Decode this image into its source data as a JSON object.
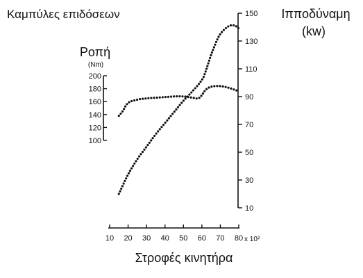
{
  "chart_data": {
    "type": "line",
    "title": "Καμπύλες επιδόσεων",
    "xlabel": "Στροφές κινητήρα",
    "x_multiplier_label": "x 10²",
    "x_ticks": [
      10,
      20,
      30,
      40,
      50,
      60,
      70,
      80
    ],
    "xlim": [
      10,
      80
    ],
    "left_axis": {
      "title": "Ροπή",
      "unit": "(Nm)",
      "ticks": [
        100,
        120,
        140,
        160,
        180,
        200
      ],
      "ylim": [
        100,
        200
      ]
    },
    "right_axis": {
      "title_line1": "Ιπποδύναμη",
      "title_line2": "(kw)",
      "ticks": [
        10,
        30,
        50,
        70,
        90,
        110,
        130,
        150
      ],
      "ylim": [
        10,
        150
      ]
    },
    "grid": false,
    "series": [
      {
        "axis": "left",
        "line_style": "dotted",
        "x": [
          15,
          17,
          20,
          25,
          30,
          35,
          40,
          45,
          50,
          55,
          58,
          60,
          62,
          65,
          70,
          75,
          80
        ],
        "y": [
          138,
          145,
          158,
          163,
          165,
          166,
          167,
          168,
          168,
          166,
          165,
          170,
          178,
          183,
          184,
          181,
          176
        ]
      },
      {
        "axis": "right",
        "line_style": "dotted",
        "x": [
          15,
          20,
          25,
          30,
          35,
          40,
          45,
          50,
          55,
          60,
          62,
          65,
          68,
          70,
          72,
          75,
          78,
          80
        ],
        "y": [
          20,
          34,
          45,
          54,
          63,
          71,
          79,
          87,
          94,
          102,
          108,
          120,
          130,
          135,
          138,
          141,
          141,
          139
        ]
      }
    ]
  }
}
